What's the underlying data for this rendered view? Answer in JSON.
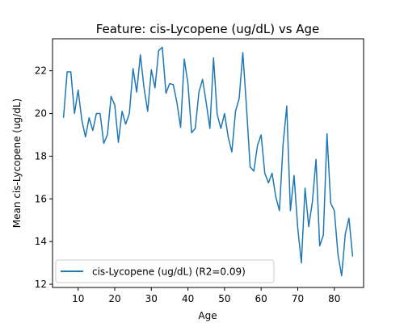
{
  "chart_data": {
    "type": "line",
    "title": "Feature: cis-Lycopene (ug/dL) vs Age",
    "xlabel": "Age",
    "ylabel": "Mean cis-Lycopene (ug/dL)",
    "xlim": [
      3,
      88
    ],
    "ylim": [
      11.85,
      23.5
    ],
    "xticks": [
      10,
      20,
      30,
      40,
      50,
      60,
      70,
      80
    ],
    "yticks": [
      12,
      14,
      16,
      18,
      20,
      22
    ],
    "grid": false,
    "legend": {
      "position": "lower-left",
      "entries": [
        "cis-Lycopene (ug/dL) (R2=0.09)"
      ]
    },
    "colors": {
      "series": "#1f77b4",
      "axes": "#000000",
      "legend_border": "#cccccc"
    },
    "series": [
      {
        "name": "cis-Lycopene (ug/dL) (R2=0.09)",
        "x": [
          6,
          7,
          8,
          9,
          10,
          11,
          12,
          13,
          14,
          15,
          16,
          17,
          18,
          19,
          20,
          21,
          22,
          23,
          24,
          25,
          26,
          27,
          28,
          29,
          30,
          31,
          32,
          33,
          34,
          35,
          36,
          37,
          38,
          39,
          40,
          41,
          42,
          43,
          44,
          45,
          46,
          47,
          48,
          49,
          50,
          51,
          52,
          53,
          54,
          55,
          56,
          57,
          58,
          59,
          60,
          61,
          62,
          63,
          64,
          65,
          66,
          67,
          68,
          69,
          70,
          71,
          72,
          73,
          74,
          75,
          76,
          77,
          78,
          79,
          80,
          81,
          82,
          83,
          84,
          85
        ],
        "y": [
          19.8,
          21.95,
          21.95,
          20.0,
          21.1,
          19.7,
          18.9,
          19.8,
          19.2,
          20.0,
          20.0,
          18.6,
          19.0,
          20.8,
          20.4,
          18.65,
          20.1,
          19.5,
          20.0,
          22.1,
          21.0,
          22.75,
          21.2,
          20.1,
          22.05,
          21.2,
          22.95,
          23.1,
          20.95,
          21.4,
          21.35,
          20.5,
          19.35,
          22.55,
          21.4,
          19.1,
          19.3,
          21.0,
          21.6,
          20.5,
          19.3,
          22.6,
          19.95,
          19.3,
          20.0,
          18.9,
          18.2,
          20.1,
          20.7,
          22.85,
          20.3,
          17.5,
          17.3,
          18.5,
          19.0,
          17.2,
          16.75,
          17.2,
          16.1,
          15.45,
          18.55,
          20.35,
          15.45,
          17.1,
          14.65,
          13.0,
          16.5,
          14.7,
          15.85,
          17.85,
          13.8,
          14.3,
          19.05,
          15.8,
          15.45,
          13.4,
          12.4,
          14.35,
          15.1,
          13.3
        ]
      }
    ]
  }
}
